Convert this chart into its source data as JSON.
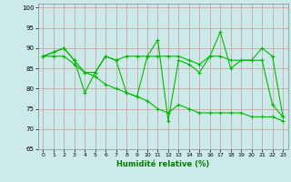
{
  "xlabel": "Humidité relative (%)",
  "background_color": "#cceaea",
  "grid_color": "#cc9999",
  "line_color": "#00bb00",
  "xlim": [
    -0.5,
    23.5
  ],
  "ylim": [
    65,
    101
  ],
  "yticks": [
    65,
    70,
    75,
    80,
    85,
    90,
    95,
    100
  ],
  "xticks": [
    0,
    1,
    2,
    3,
    4,
    5,
    6,
    7,
    8,
    9,
    10,
    11,
    12,
    13,
    14,
    15,
    16,
    17,
    18,
    19,
    20,
    21,
    22,
    23
  ],
  "line1": [
    88,
    89,
    90,
    87,
    79,
    84,
    88,
    87,
    79,
    78,
    88,
    92,
    72,
    87,
    86,
    84,
    88,
    94,
    85,
    87,
    87,
    87,
    76,
    73
  ],
  "line2": [
    88,
    89,
    90,
    87,
    84,
    84,
    88,
    87,
    88,
    88,
    88,
    88,
    88,
    88,
    87,
    86,
    88,
    88,
    87,
    87,
    87,
    90,
    88,
    73
  ],
  "line3": [
    88,
    88,
    88,
    86,
    84,
    83,
    81,
    80,
    79,
    78,
    77,
    75,
    74,
    76,
    75,
    74,
    74,
    74,
    74,
    74,
    73,
    73,
    73,
    72
  ]
}
